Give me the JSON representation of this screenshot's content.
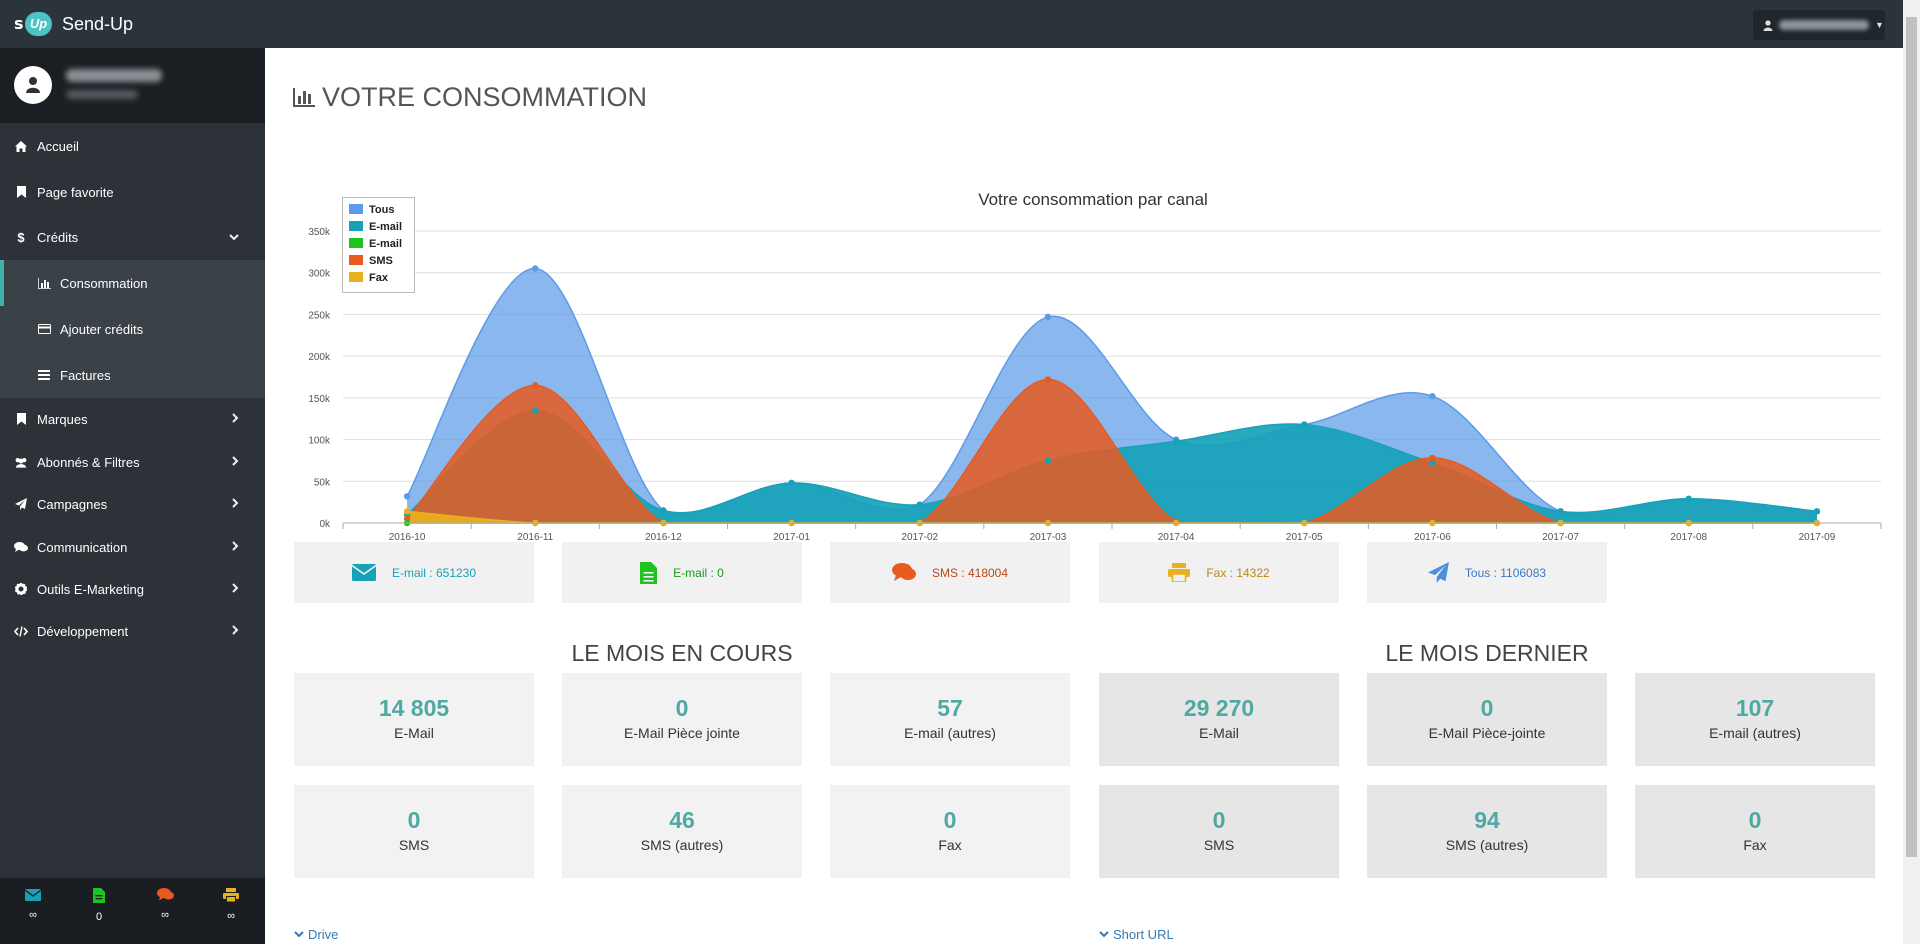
{
  "app": {
    "name": "Send-Up",
    "logo_letter": "s",
    "logo_badge": "Up"
  },
  "colors": {
    "sidebar": "#2c3237",
    "topbar": "#2b333b",
    "accent": "#3fb0ab",
    "tous": "#5b9be8",
    "email": "#17a2b8",
    "email2": "#1fc21f",
    "sms": "#e85a1e",
    "fax": "#e8b11e"
  },
  "sidebar": {
    "items": [
      {
        "label": "Accueil",
        "icon": "home-icon"
      },
      {
        "label": "Page favorite",
        "icon": "bookmark-icon"
      },
      {
        "label": "Crédits",
        "icon": "dollar-icon"
      },
      {
        "label": "Consommation",
        "icon": "bar-chart-icon"
      },
      {
        "label": "Ajouter crédits",
        "icon": "credit-card-icon"
      },
      {
        "label": "Factures",
        "icon": "list-icon"
      },
      {
        "label": "Marques",
        "icon": "bookmark-icon"
      },
      {
        "label": "Abonnés & Filtres",
        "icon": "users-icon"
      },
      {
        "label": "Campagnes",
        "icon": "paper-plane-icon"
      },
      {
        "label": "Communication",
        "icon": "comments-icon"
      },
      {
        "label": "Outils E-Marketing",
        "icon": "cog-icon"
      },
      {
        "label": "Développement",
        "icon": "code-icon"
      }
    ],
    "counters": [
      {
        "icon": "envelope-icon",
        "value": "∞"
      },
      {
        "icon": "file-icon",
        "value": "0"
      },
      {
        "icon": "comments-icon",
        "value": "∞"
      },
      {
        "icon": "print-icon",
        "value": "∞"
      }
    ]
  },
  "page": {
    "title": "VOTRE CONSOMMATION"
  },
  "chart_data": {
    "type": "area",
    "title": "Votre consommation par canal",
    "categories": [
      "2016-10",
      "2016-11",
      "2016-12",
      "2017-01",
      "2017-02",
      "2017-03",
      "2017-04",
      "2017-05",
      "2017-06",
      "2017-07",
      "2017-08",
      "2017-09"
    ],
    "y_ticks": [
      "0k",
      "50k",
      "100k",
      "150k",
      "200k",
      "250k",
      "300k",
      "350k"
    ],
    "ylim": [
      0,
      350000
    ],
    "legend_position": "top-left",
    "series": [
      {
        "name": "Tous",
        "color": "#5b9be8",
        "values": [
          32000,
          305000,
          15000,
          48000,
          22000,
          247000,
          100000,
          118000,
          152000,
          14000,
          29000,
          14000
        ]
      },
      {
        "name": "E-mail",
        "color": "#17a2b8",
        "values": [
          10000,
          135000,
          15000,
          48000,
          22000,
          75000,
          98000,
          118000,
          72000,
          14000,
          29000,
          14000
        ]
      },
      {
        "name": "SMS",
        "color": "#e85a1e",
        "values": [
          5000,
          165000,
          0,
          0,
          0,
          172000,
          2000,
          0,
          78000,
          0,
          0,
          0
        ]
      },
      {
        "name": "E-mail",
        "color": "#1fc21f",
        "values": [
          0,
          0,
          0,
          0,
          0,
          0,
          0,
          0,
          0,
          0,
          0,
          0
        ]
      },
      {
        "name": "Fax",
        "color": "#e8b11e",
        "values": [
          14000,
          0,
          0,
          0,
          0,
          0,
          0,
          0,
          0,
          0,
          0,
          0
        ]
      }
    ],
    "legend": [
      "Tous",
      "E-mail",
      "E-mail",
      "SMS",
      "Fax"
    ]
  },
  "totals": [
    {
      "label": "E-mail : 651230",
      "color": "#17a2b8",
      "icon": "envelope-icon"
    },
    {
      "label": "E-mail : 0",
      "color": "#1fc21f",
      "icon": "file-icon"
    },
    {
      "label": "SMS : 418004",
      "color": "#e85a1e",
      "icon": "comments-icon"
    },
    {
      "label": "Fax : 14322",
      "color": "#e8b11e",
      "icon": "print-icon"
    },
    {
      "label": "Tous : 1106083",
      "color": "#4c8fe0",
      "icon": "paper-plane-icon"
    }
  ],
  "current_month": {
    "title": "LE MOIS EN COURS",
    "stats": [
      {
        "value": "14 805",
        "label": "E-Mail"
      },
      {
        "value": "0",
        "label": "E-Mail Pièce jointe"
      },
      {
        "value": "57",
        "label": "E-mail (autres)"
      },
      {
        "value": "0",
        "label": "SMS"
      },
      {
        "value": "46",
        "label": "SMS (autres)"
      },
      {
        "value": "0",
        "label": "Fax"
      }
    ]
  },
  "last_month": {
    "title": "LE MOIS DERNIER",
    "stats": [
      {
        "value": "29 270",
        "label": "E-Mail"
      },
      {
        "value": "0",
        "label": "E-Mail Pièce-jointe"
      },
      {
        "value": "107",
        "label": "E-mail (autres)"
      },
      {
        "value": "0",
        "label": "SMS"
      },
      {
        "value": "94",
        "label": "SMS (autres)"
      },
      {
        "value": "0",
        "label": "Fax"
      }
    ]
  },
  "footer": {
    "drive": "Drive",
    "short_url": "Short URL"
  }
}
